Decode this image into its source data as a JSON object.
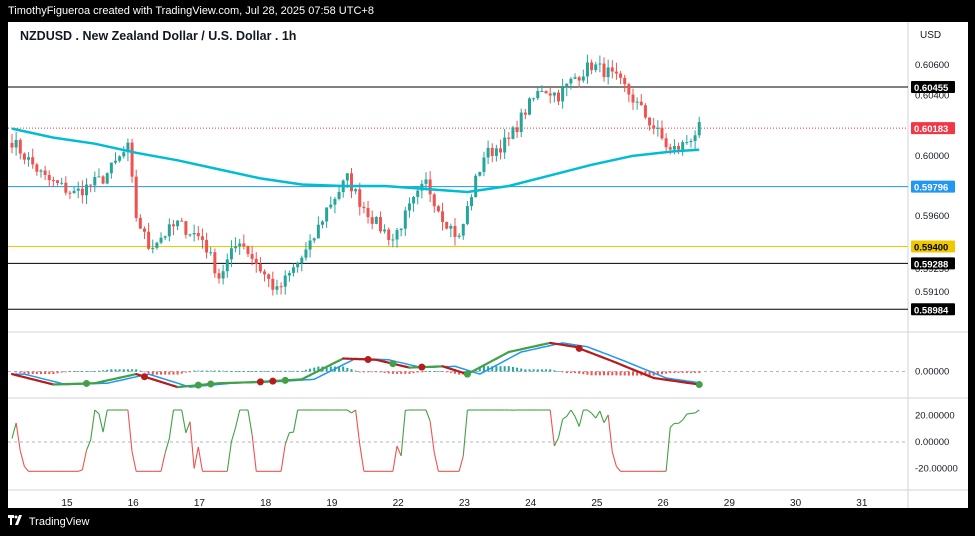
{
  "header": {
    "caption": "TimothyFigueroa created with TradingView.com, Jul 28, 2025 07:58 UTC+8"
  },
  "footer": {
    "brand": "TradingView"
  },
  "chart_data": [
    {
      "type": "candlestick",
      "title": "NZDUSD . New Zealand Dollar / U.S. Dollar . 1h",
      "currency": "USD",
      "x_tick_labels": [
        "15",
        "16",
        "17",
        "18",
        "19",
        "22",
        "23",
        "24",
        "25",
        "26",
        "29",
        "30",
        "31"
      ],
      "y_tick_labels": [
        "0.60600",
        "0.60400",
        "0.60000",
        "0.59600",
        "0.59250",
        "0.59100"
      ],
      "ylim": [
        0.589,
        0.607
      ],
      "horizontal_lines": [
        {
          "value": 0.60455,
          "label": "0.60455",
          "color": "#000000",
          "style": "solid"
        },
        {
          "value": 0.60183,
          "label": "0.60183",
          "color": "#f23645",
          "style": "dotted"
        },
        {
          "value": 0.59796,
          "label": "0.59796",
          "color": "#2196f3",
          "style": "solid"
        },
        {
          "value": 0.594,
          "label": "0.59400",
          "color": "#f0c800",
          "style": "solid"
        },
        {
          "value": 0.59288,
          "label": "0.59288",
          "color": "#000000",
          "style": "solid"
        },
        {
          "value": 0.58984,
          "label": "0.58984",
          "color": "#000000",
          "style": "solid"
        }
      ],
      "price_keypoints": [
        [
          0,
          0.601
        ],
        [
          3,
          0.6
        ],
        [
          8,
          0.5985
        ],
        [
          15,
          0.5975
        ],
        [
          22,
          0.5985
        ],
        [
          28,
          0.6005
        ],
        [
          30,
          0.596
        ],
        [
          33,
          0.594
        ],
        [
          40,
          0.5955
        ],
        [
          46,
          0.5945
        ],
        [
          50,
          0.592
        ],
        [
          55,
          0.5945
        ],
        [
          60,
          0.5925
        ],
        [
          64,
          0.591
        ],
        [
          68,
          0.5925
        ],
        [
          72,
          0.594
        ],
        [
          76,
          0.5965
        ],
        [
          81,
          0.5985
        ],
        [
          84,
          0.597
        ],
        [
          88,
          0.5955
        ],
        [
          92,
          0.5945
        ],
        [
          96,
          0.5965
        ],
        [
          100,
          0.5982
        ],
        [
          104,
          0.596
        ],
        [
          108,
          0.5945
        ],
        [
          111,
          0.5975
        ],
        [
          114,
          0.6
        ],
        [
          120,
          0.601
        ],
        [
          124,
          0.603
        ],
        [
          128,
          0.6045
        ],
        [
          132,
          0.604
        ],
        [
          136,
          0.6052
        ],
        [
          140,
          0.606
        ],
        [
          144,
          0.6055
        ],
        [
          148,
          0.6045
        ],
        [
          152,
          0.603
        ],
        [
          156,
          0.6015
        ],
        [
          159,
          0.6003
        ],
        [
          162,
          0.6007
        ],
        [
          166,
          0.6018
        ]
      ],
      "moving_average": {
        "color": "#00bcd4",
        "points": [
          [
            0,
            0.6018
          ],
          [
            10,
            0.6012
          ],
          [
            20,
            0.6008
          ],
          [
            30,
            0.6002
          ],
          [
            40,
            0.5997
          ],
          [
            50,
            0.5991
          ],
          [
            60,
            0.5985
          ],
          [
            70,
            0.5981
          ],
          [
            80,
            0.598
          ],
          [
            90,
            0.598
          ],
          [
            100,
            0.5978
          ],
          [
            110,
            0.5976
          ],
          [
            120,
            0.598
          ],
          [
            130,
            0.5987
          ],
          [
            140,
            0.5994
          ],
          [
            150,
            0.6
          ],
          [
            160,
            0.6003
          ],
          [
            166,
            0.6004
          ]
        ]
      }
    },
    {
      "type": "oscillator",
      "zero_label": "0.00000",
      "fast_line_color": "#2196f3",
      "signal_line_colors": {
        "up": "#43a047",
        "down": "#b71c1c"
      },
      "histogram_colors": {
        "positive": "#26a69a",
        "negative": "#ef5350"
      },
      "line_points": [
        [
          0,
          -0.0002
        ],
        [
          10,
          -0.001
        ],
        [
          20,
          -0.0009
        ],
        [
          30,
          -0.0002
        ],
        [
          40,
          -0.0012
        ],
        [
          50,
          -0.0009
        ],
        [
          60,
          -0.0008
        ],
        [
          70,
          -0.0006
        ],
        [
          80,
          0.001
        ],
        [
          88,
          0.0009
        ],
        [
          96,
          0.0003
        ],
        [
          104,
          0.0004
        ],
        [
          110,
          -0.0002
        ],
        [
          120,
          0.0015
        ],
        [
          130,
          0.0022
        ],
        [
          136,
          0.0019
        ],
        [
          145,
          0.0008
        ],
        [
          155,
          -0.0005
        ],
        [
          166,
          -0.001
        ]
      ],
      "dots": [
        {
          "i": 18,
          "color": "#43a047"
        },
        {
          "i": 32,
          "color": "#b71c1c"
        },
        {
          "i": 45,
          "color": "#43a047"
        },
        {
          "i": 48,
          "color": "#43a047"
        },
        {
          "i": 60,
          "color": "#b71c1c"
        },
        {
          "i": 63,
          "color": "#b71c1c"
        },
        {
          "i": 66,
          "color": "#43a047"
        },
        {
          "i": 86,
          "color": "#b71c1c"
        },
        {
          "i": 92,
          "color": "#43a047"
        },
        {
          "i": 99,
          "color": "#b71c1c"
        },
        {
          "i": 110,
          "color": "#43a047"
        },
        {
          "i": 137,
          "color": "#b71c1c"
        },
        {
          "i": 166,
          "color": "#43a047"
        }
      ]
    },
    {
      "type": "line",
      "y_tick_labels": [
        "20.00000",
        "0.00000",
        "-20.00000"
      ],
      "ylim": [
        -30,
        30
      ],
      "colors": {
        "positive": "#43a047",
        "negative": "#ef5350"
      }
    }
  ]
}
